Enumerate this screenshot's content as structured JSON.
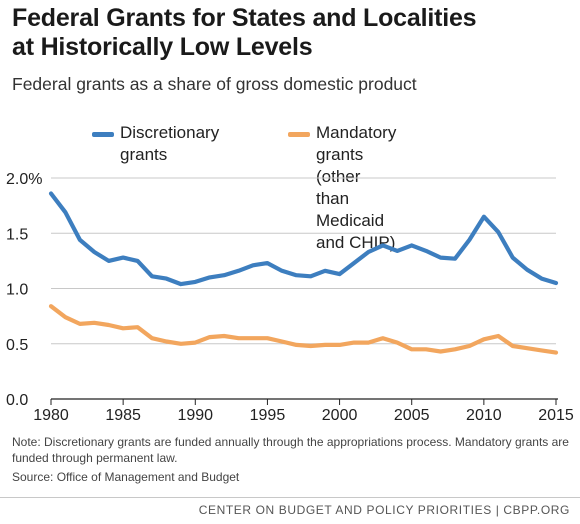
{
  "title_line1": "Federal Grants for States and Localities",
  "title_line2": "at Historically Low Levels",
  "subtitle": "Federal grants as a share of gross domestic product",
  "note": "Note: Discretionary grants are funded annually through the appropriations process. Mandatory grants are funded through permanent law.",
  "source": "Source: Office of Management and Budget",
  "footer": "CENTER ON BUDGET AND POLICY PRIORITIES | CBPP.ORG",
  "colors": {
    "discretionary": "#3d7ebf",
    "mandatory": "#f2a65e",
    "grid": "#c8c8c8",
    "axis": "#222222"
  },
  "chart_data": {
    "type": "line",
    "x": [
      1980,
      1981,
      1982,
      1983,
      1984,
      1985,
      1986,
      1987,
      1988,
      1989,
      1990,
      1991,
      1992,
      1993,
      1994,
      1995,
      1996,
      1997,
      1998,
      1999,
      2000,
      2001,
      2002,
      2003,
      2004,
      2005,
      2006,
      2007,
      2008,
      2009,
      2010,
      2011,
      2012,
      2013,
      2014,
      2015
    ],
    "series": [
      {
        "name": "Discretionary grants",
        "legend_line1": "Discretionary grants",
        "legend_line2": "",
        "values": [
          1.86,
          1.69,
          1.44,
          1.33,
          1.25,
          1.28,
          1.25,
          1.11,
          1.09,
          1.04,
          1.06,
          1.1,
          1.12,
          1.16,
          1.21,
          1.23,
          1.16,
          1.12,
          1.11,
          1.16,
          1.13,
          1.23,
          1.33,
          1.39,
          1.34,
          1.39,
          1.34,
          1.28,
          1.27,
          1.44,
          1.65,
          1.51,
          1.28,
          1.17,
          1.09,
          1.05
        ]
      },
      {
        "name": "Mandatory grants (other than Medicaid and CHIP)",
        "legend_line1": "Mandatory grants (other",
        "legend_line2": "than Medicaid and CHIP)",
        "values": [
          0.84,
          0.74,
          0.68,
          0.69,
          0.67,
          0.64,
          0.65,
          0.55,
          0.52,
          0.5,
          0.51,
          0.56,
          0.57,
          0.55,
          0.55,
          0.55,
          0.52,
          0.49,
          0.48,
          0.49,
          0.49,
          0.51,
          0.51,
          0.55,
          0.51,
          0.45,
          0.45,
          0.43,
          0.45,
          0.48,
          0.54,
          0.57,
          0.48,
          0.46,
          0.44,
          0.42
        ]
      }
    ],
    "xticks": [
      1980,
      1985,
      1990,
      1995,
      2000,
      2005,
      2010,
      2015
    ],
    "yticks": [
      {
        "value": 0.0,
        "label": "0.0"
      },
      {
        "value": 0.5,
        "label": "0.5"
      },
      {
        "value": 1.0,
        "label": "1.0"
      },
      {
        "value": 1.5,
        "label": "1.5"
      },
      {
        "value": 2.0,
        "label": "2.0%"
      }
    ],
    "xlim": [
      1980,
      2015
    ],
    "ylim": [
      0,
      2.0
    ],
    "grid": true,
    "legend": "top"
  }
}
